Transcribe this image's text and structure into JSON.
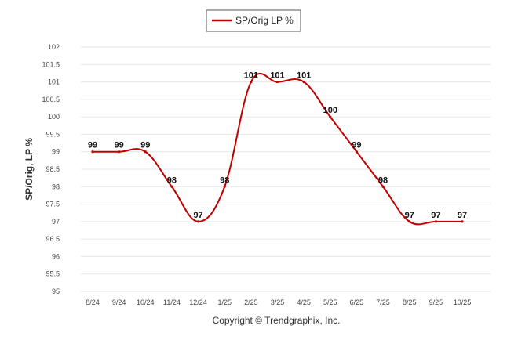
{
  "chart_data": {
    "type": "line",
    "categories": [
      "8/24",
      "9/24",
      "10/24",
      "11/24",
      "12/24",
      "1/25",
      "2/25",
      "3/25",
      "4/25",
      "5/25",
      "6/25",
      "7/25",
      "8/25",
      "9/25",
      "10/25"
    ],
    "series": [
      {
        "name": "SP/Orig LP %",
        "values": [
          99,
          99,
          99,
          98,
          97,
          98,
          101,
          101,
          101,
          100,
          99,
          98,
          97,
          97,
          97
        ],
        "plot_values": [
          99,
          99,
          99,
          98,
          97,
          98,
          101,
          101,
          101,
          100,
          99,
          98,
          97,
          97,
          97
        ],
        "color": "#c00000"
      }
    ],
    "ylabel": "SP/Orig, LP %",
    "xlabel": "",
    "ylim": [
      95,
      102
    ],
    "yticks": [
      "95",
      "95.5",
      "96",
      "96.5",
      "97",
      "97.5",
      "98",
      "98.5",
      "99",
      "99.5",
      "100",
      "100.5",
      "101",
      "101.5",
      "102"
    ],
    "grid": true,
    "legend": "top-center"
  },
  "footer": "Copyright © Trendgraphix, Inc."
}
